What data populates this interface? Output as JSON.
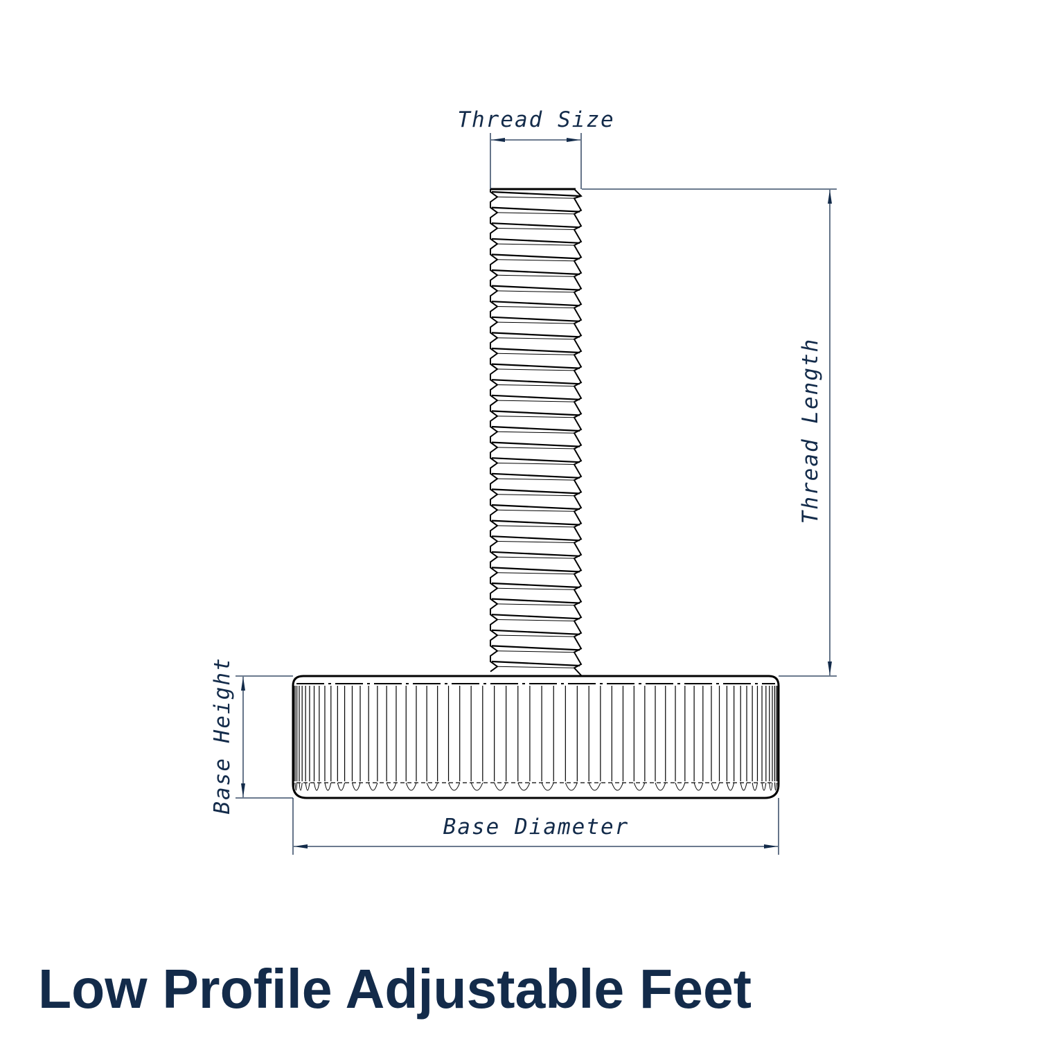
{
  "title": "Low Profile Adjustable Feet",
  "colors": {
    "dimension": "#132b4a",
    "part_outline": "#000000",
    "background": "#ffffff"
  },
  "dimensions": {
    "thread_size": "Thread Size",
    "thread_length": "Thread Length",
    "base_height": "Base Height",
    "base_diameter": "Base Diameter"
  }
}
